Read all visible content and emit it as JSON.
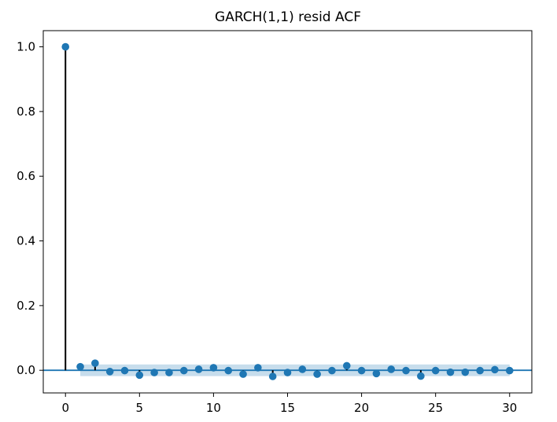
{
  "chart_data": {
    "type": "stem",
    "title": "GARCH(1,1) resid ACF",
    "xlabel": "",
    "ylabel": "",
    "xlim": [
      -1.5,
      31.5
    ],
    "ylim": [
      -0.07,
      1.05
    ],
    "xticks": [
      0,
      5,
      10,
      15,
      20,
      25,
      30
    ],
    "yticks": [
      0.0,
      0.2,
      0.4,
      0.6,
      0.8,
      1.0
    ],
    "xtick_labels": [
      "0",
      "5",
      "10",
      "15",
      "20",
      "25",
      "30"
    ],
    "ytick_labels": [
      "0.0",
      "0.2",
      "0.4",
      "0.6",
      "0.8",
      "1.0"
    ],
    "grid": false,
    "lags": [
      0,
      1,
      2,
      3,
      4,
      5,
      6,
      7,
      8,
      9,
      10,
      11,
      12,
      13,
      14,
      15,
      16,
      17,
      18,
      19,
      20,
      21,
      22,
      23,
      24,
      25,
      26,
      27,
      28,
      29,
      30
    ],
    "values": [
      1.0,
      0.011,
      0.022,
      -0.004,
      -0.001,
      -0.015,
      -0.007,
      -0.007,
      -0.001,
      0.003,
      0.008,
      -0.001,
      -0.012,
      0.008,
      -0.019,
      -0.007,
      0.003,
      -0.012,
      -0.001,
      0.014,
      -0.001,
      -0.01,
      0.003,
      -0.001,
      -0.018,
      -0.001,
      -0.006,
      -0.006,
      -0.001,
      0.002,
      -0.001
    ],
    "confidence_band": {
      "lags": [
        1,
        30
      ],
      "lower": -0.018,
      "upper": 0.018
    },
    "zero_line": 0.0,
    "colors": {
      "marker": "#1f77b4",
      "stem": "#000000",
      "band": "#1f77b4",
      "zero_line": "#1f77b4"
    }
  }
}
